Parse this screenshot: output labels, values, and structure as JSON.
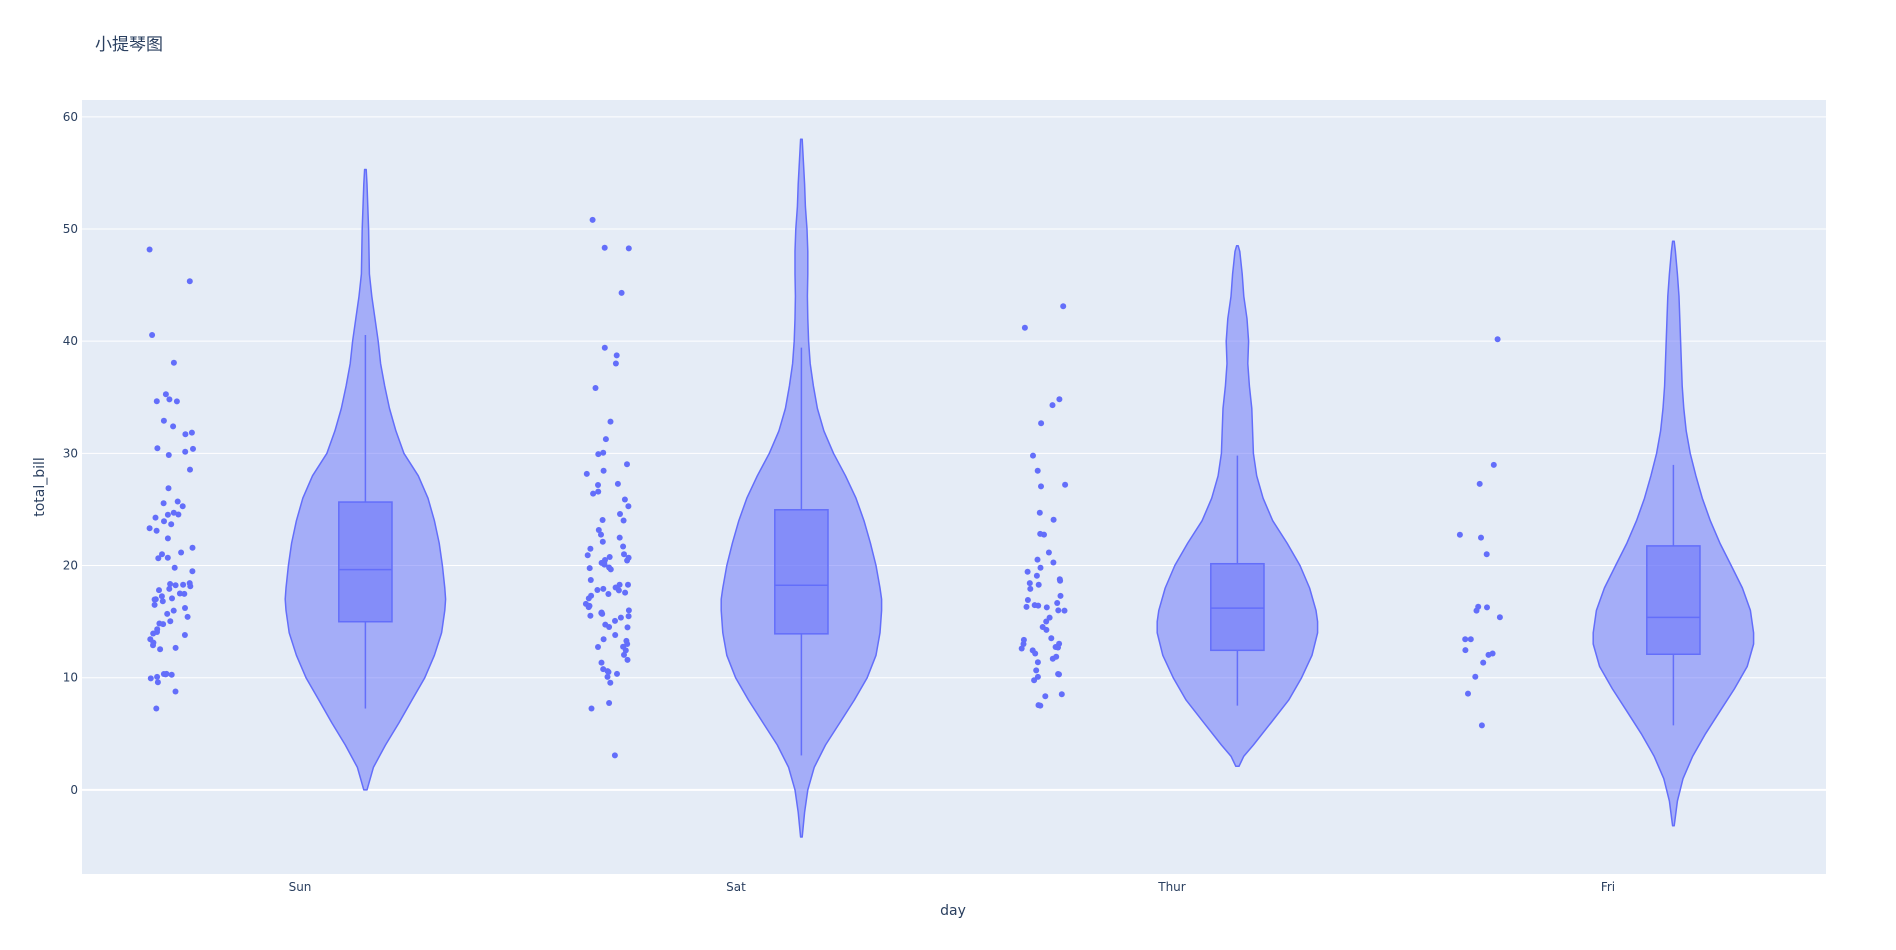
{
  "chart_data": {
    "type": "violin",
    "title": "小提琴图",
    "xlabel": "day",
    "ylabel": "total_bill",
    "ylim": [
      -7.5,
      61.5
    ],
    "yticks": [
      0,
      10,
      20,
      30,
      40,
      50,
      60
    ],
    "grid": true,
    "colors": {
      "plot_bg": "#e5ecf6",
      "fill": "#636efa",
      "grid": "#ffffff",
      "text": "#2a3f5f"
    },
    "categories": [
      "Sun",
      "Sat",
      "Thur",
      "Fri"
    ],
    "violins": [
      {
        "day": "Sun",
        "min": 7.25,
        "q1": 14.99,
        "median": 19.63,
        "q3": 25.66,
        "max": 48.17,
        "upper_fence": 40.55,
        "kde_min": 0,
        "kde_max": 55.3,
        "profile": [
          [
            0,
            0.02
          ],
          [
            2,
            0.1
          ],
          [
            4,
            0.25
          ],
          [
            6,
            0.42
          ],
          [
            8,
            0.58
          ],
          [
            10,
            0.74
          ],
          [
            12,
            0.86
          ],
          [
            14,
            0.95
          ],
          [
            16,
            0.99
          ],
          [
            17,
            1.0
          ],
          [
            18,
            0.99
          ],
          [
            20,
            0.96
          ],
          [
            22,
            0.92
          ],
          [
            24,
            0.86
          ],
          [
            26,
            0.78
          ],
          [
            28,
            0.66
          ],
          [
            30,
            0.48
          ],
          [
            32,
            0.38
          ],
          [
            34,
            0.3
          ],
          [
            36,
            0.24
          ],
          [
            38,
            0.19
          ],
          [
            40,
            0.16
          ],
          [
            42,
            0.12
          ],
          [
            44,
            0.08
          ],
          [
            46,
            0.05
          ],
          [
            48,
            0.045
          ],
          [
            50,
            0.04
          ],
          [
            52,
            0.03
          ],
          [
            54,
            0.02
          ],
          [
            55.3,
            0.01
          ]
        ],
        "points": [
          48.17,
          45.35,
          40.55,
          38.07,
          35.26,
          34.81,
          34.63,
          34.65,
          32.9,
          32.4,
          31.85,
          31.71,
          30.46,
          30.4,
          30.14,
          29.85,
          28.55,
          26.88,
          25.71,
          25.56,
          25.28,
          24.71,
          24.55,
          24.52,
          24.27,
          23.95,
          23.68,
          23.33,
          23.1,
          22.42,
          21.58,
          21.16,
          21.01,
          20.69,
          20.65,
          19.81,
          19.49,
          18.43,
          18.35,
          18.29,
          18.24,
          18.15,
          17.92,
          17.81,
          17.51,
          17.47,
          17.26,
          17.07,
          16.99,
          16.97,
          16.82,
          16.49,
          16.21,
          15.98,
          15.69,
          15.42,
          15.04,
          14.83,
          14.78,
          14.31,
          14.07,
          13.94,
          13.81,
          13.42,
          13.13,
          12.9,
          12.66,
          12.54,
          10.34,
          10.33,
          10.29,
          10.27,
          10.07,
          9.94,
          9.6,
          8.77,
          7.25
        ]
      },
      {
        "day": "Sat",
        "min": 3.07,
        "q1": 13.91,
        "median": 18.24,
        "q3": 24.97,
        "max": 50.81,
        "upper_fence": 39.42,
        "kde_min": -4.2,
        "kde_max": 58.0,
        "profile": [
          [
            -4.2,
            0.01
          ],
          [
            -2,
            0.04
          ],
          [
            0,
            0.08
          ],
          [
            2,
            0.16
          ],
          [
            4,
            0.3
          ],
          [
            6,
            0.48
          ],
          [
            8,
            0.66
          ],
          [
            10,
            0.82
          ],
          [
            12,
            0.93
          ],
          [
            14,
            0.98
          ],
          [
            16,
            1.0
          ],
          [
            17,
            1.0
          ],
          [
            18,
            0.98
          ],
          [
            20,
            0.93
          ],
          [
            22,
            0.86
          ],
          [
            24,
            0.78
          ],
          [
            26,
            0.68
          ],
          [
            28,
            0.55
          ],
          [
            30,
            0.4
          ],
          [
            32,
            0.28
          ],
          [
            34,
            0.2
          ],
          [
            36,
            0.15
          ],
          [
            38,
            0.11
          ],
          [
            40,
            0.09
          ],
          [
            42,
            0.08
          ],
          [
            44,
            0.075
          ],
          [
            46,
            0.08
          ],
          [
            48,
            0.08
          ],
          [
            50,
            0.07
          ],
          [
            52,
            0.05
          ],
          [
            54,
            0.04
          ],
          [
            56,
            0.025
          ],
          [
            58,
            0.01
          ]
        ],
        "points": [
          50.81,
          48.33,
          48.27,
          44.3,
          39.42,
          38.73,
          38.01,
          35.83,
          32.83,
          31.27,
          30.06,
          29.93,
          29.03,
          28.44,
          28.17,
          27.28,
          27.18,
          26.59,
          26.41,
          25.89,
          25.29,
          24.59,
          24.06,
          24.01,
          23.17,
          22.76,
          22.49,
          22.12,
          21.7,
          21.5,
          21.01,
          20.92,
          20.76,
          20.69,
          20.49,
          20.45,
          20.29,
          20.23,
          20.08,
          19.82,
          19.77,
          19.65,
          18.71,
          18.29,
          18.28,
          18.04,
          17.92,
          17.82,
          17.78,
          17.59,
          17.46,
          17.31,
          17.07,
          16.58,
          16.4,
          16.29,
          16.0,
          15.81,
          15.77,
          15.69,
          15.53,
          15.48,
          15.36,
          15.06,
          14.73,
          14.52,
          14.48,
          13.81,
          13.42,
          13.28,
          13.0,
          12.76,
          12.74,
          12.43,
          12.03,
          11.59,
          11.35,
          10.77,
          10.59,
          10.51,
          10.34,
          10.07,
          9.55,
          7.74,
          7.25,
          3.07
        ]
      },
      {
        "day": "Thur",
        "min": 7.51,
        "q1": 12.44,
        "median": 16.2,
        "q3": 20.16,
        "max": 43.11,
        "upper_fence": 29.8,
        "kde_min": 2.1,
        "kde_max": 48.5,
        "profile": [
          [
            2.1,
            0.02
          ],
          [
            3,
            0.08
          ],
          [
            4,
            0.2
          ],
          [
            6,
            0.42
          ],
          [
            8,
            0.64
          ],
          [
            10,
            0.8
          ],
          [
            12,
            0.93
          ],
          [
            14,
            1.0
          ],
          [
            15,
            1.0
          ],
          [
            16,
            0.98
          ],
          [
            18,
            0.9
          ],
          [
            20,
            0.78
          ],
          [
            22,
            0.62
          ],
          [
            24,
            0.44
          ],
          [
            26,
            0.32
          ],
          [
            28,
            0.24
          ],
          [
            30,
            0.2
          ],
          [
            32,
            0.19
          ],
          [
            34,
            0.18
          ],
          [
            36,
            0.15
          ],
          [
            38,
            0.13
          ],
          [
            40,
            0.14
          ],
          [
            42,
            0.12
          ],
          [
            44,
            0.08
          ],
          [
            46,
            0.06
          ],
          [
            48,
            0.03
          ],
          [
            48.5,
            0.01
          ]
        ],
        "points": [
          43.11,
          41.19,
          34.83,
          34.3,
          32.68,
          29.8,
          28.44,
          27.2,
          27.05,
          24.71,
          24.08,
          22.82,
          22.76,
          21.16,
          20.53,
          20.27,
          19.81,
          19.44,
          19.08,
          18.78,
          18.64,
          18.43,
          18.28,
          17.92,
          17.29,
          16.93,
          16.66,
          16.47,
          16.43,
          16.31,
          16.27,
          16.0,
          15.98,
          15.36,
          15.01,
          14.52,
          14.26,
          13.51,
          13.37,
          13.03,
          13.0,
          12.74,
          12.69,
          12.6,
          12.43,
          12.16,
          11.87,
          11.69,
          11.38,
          10.65,
          10.33,
          10.29,
          10.07,
          9.78,
          8.52,
          8.35,
          7.56,
          7.51
        ]
      },
      {
        "day": "Fri",
        "min": 5.75,
        "q1": 12.09,
        "median": 15.38,
        "q3": 21.75,
        "max": 40.17,
        "upper_fence": 28.97,
        "kde_min": -3.2,
        "kde_max": 48.9,
        "profile": [
          [
            -3.2,
            0.01
          ],
          [
            -1,
            0.05
          ],
          [
            1,
            0.12
          ],
          [
            3,
            0.24
          ],
          [
            5,
            0.4
          ],
          [
            7,
            0.58
          ],
          [
            9,
            0.76
          ],
          [
            11,
            0.92
          ],
          [
            13,
            1.0
          ],
          [
            14,
            1.0
          ],
          [
            16,
            0.96
          ],
          [
            18,
            0.86
          ],
          [
            20,
            0.72
          ],
          [
            22,
            0.58
          ],
          [
            24,
            0.46
          ],
          [
            26,
            0.36
          ],
          [
            28,
            0.28
          ],
          [
            30,
            0.21
          ],
          [
            32,
            0.16
          ],
          [
            34,
            0.13
          ],
          [
            36,
            0.11
          ],
          [
            38,
            0.1
          ],
          [
            40,
            0.09
          ],
          [
            42,
            0.08
          ],
          [
            44,
            0.07
          ],
          [
            46,
            0.05
          ],
          [
            48,
            0.025
          ],
          [
            48.9,
            0.01
          ]
        ],
        "points": [
          40.17,
          28.97,
          27.28,
          22.75,
          22.49,
          21.01,
          16.32,
          16.27,
          15.98,
          15.38,
          13.42,
          13.42,
          12.46,
          12.16,
          12.03,
          11.35,
          10.09,
          8.58,
          5.75
        ]
      }
    ]
  }
}
